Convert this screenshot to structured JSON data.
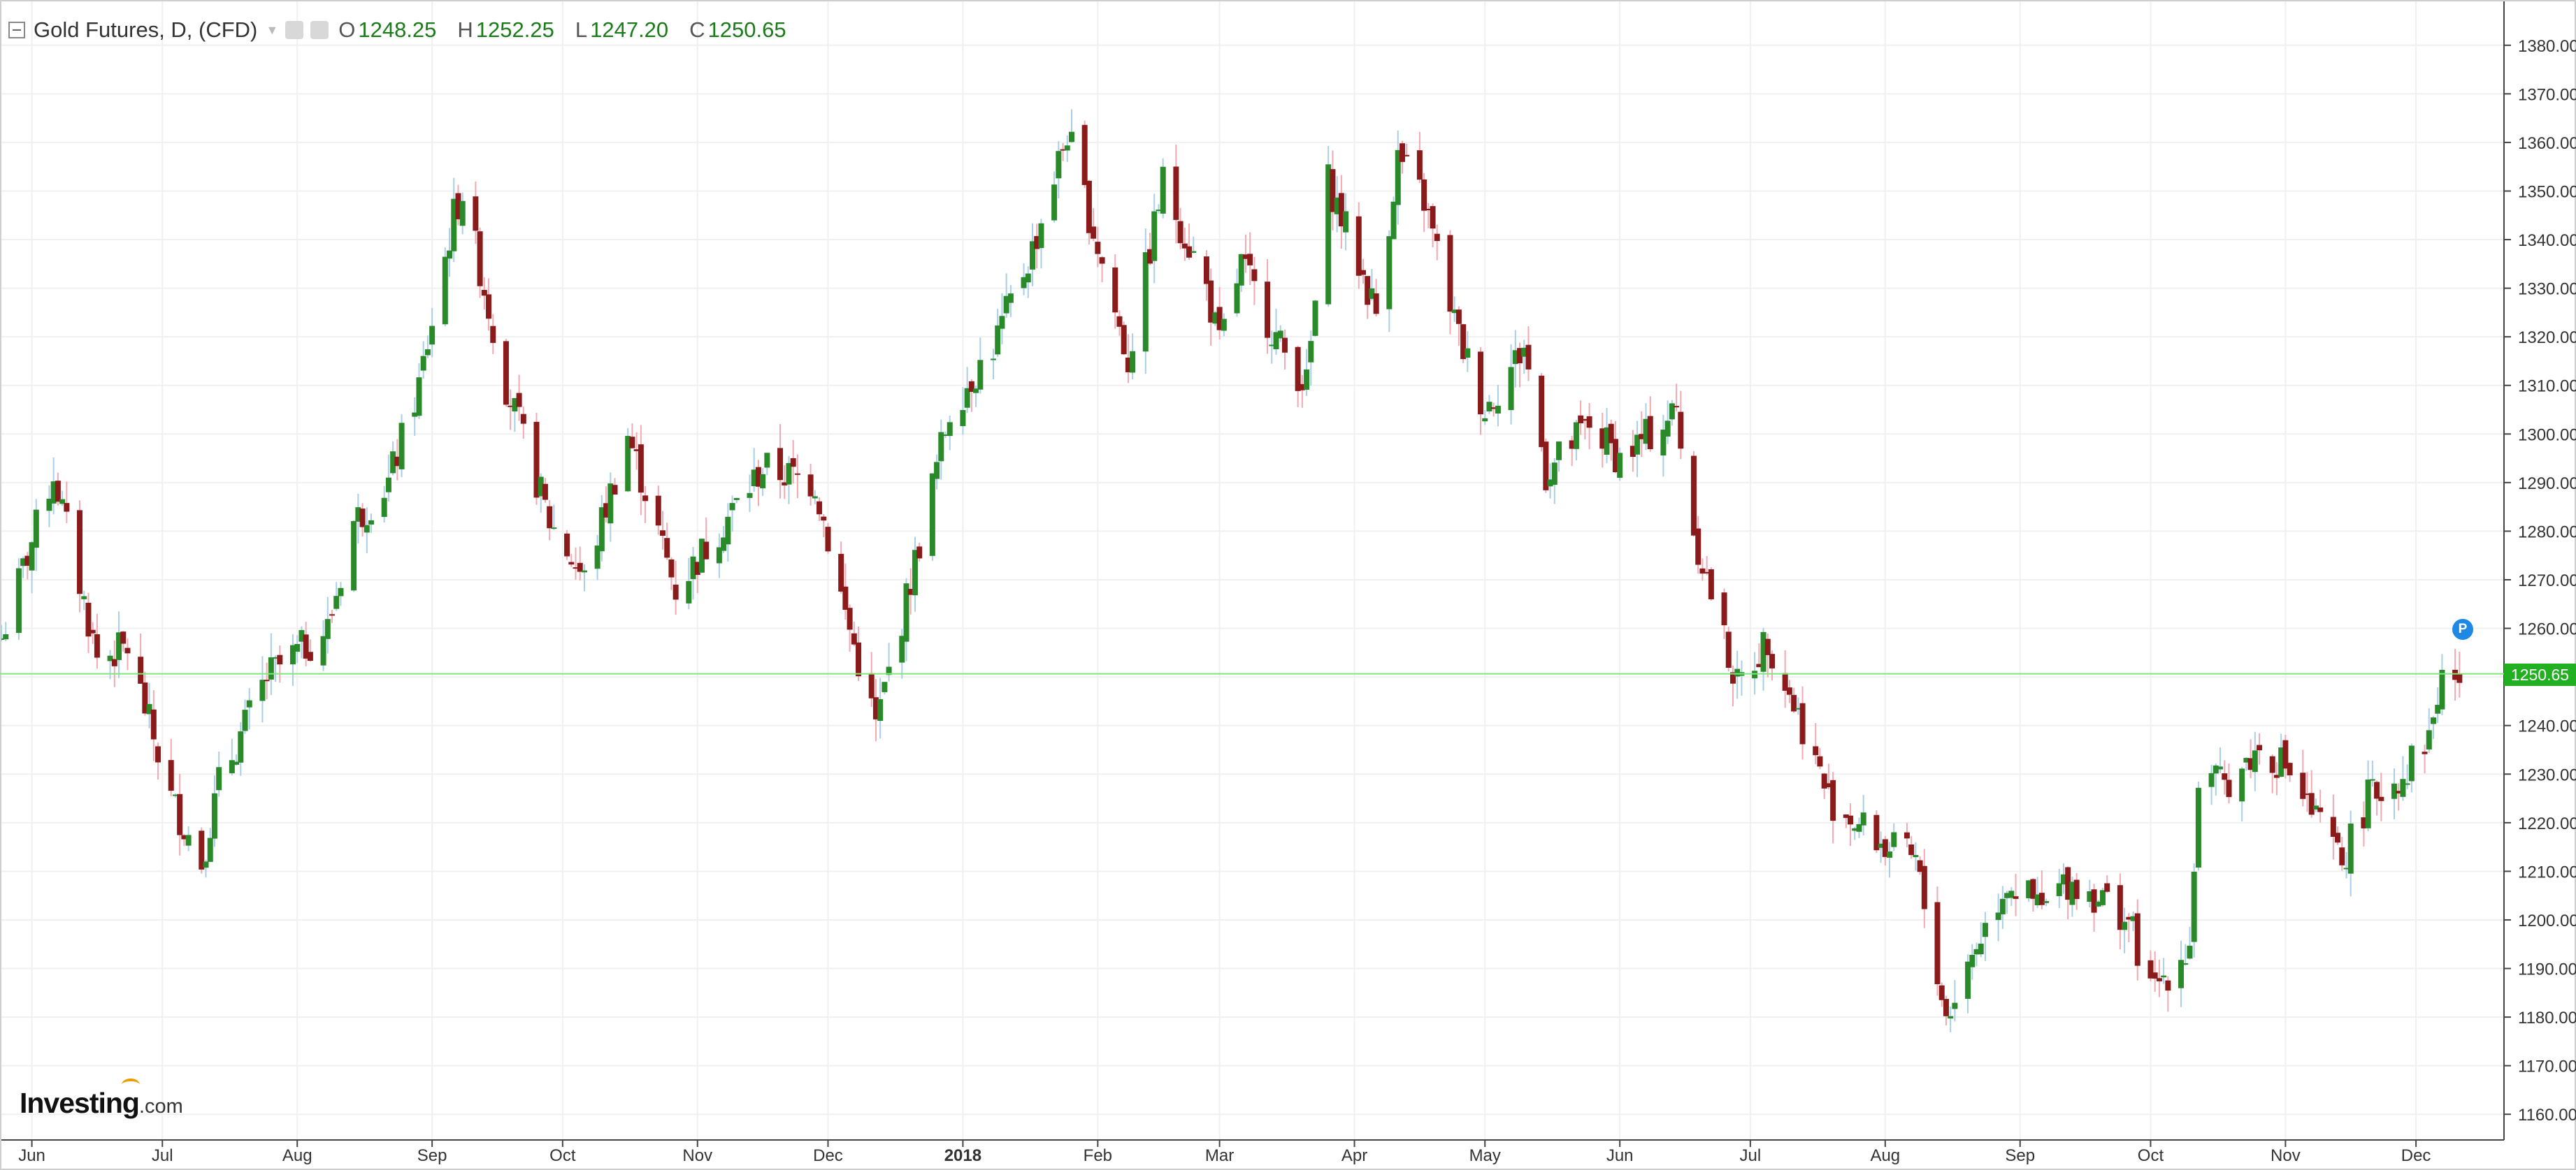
{
  "header": {
    "title": "Gold Futures, D, (CFD)",
    "ohlc": [
      {
        "label": "O",
        "value": "1248.25"
      },
      {
        "label": "H",
        "value": "1252.25"
      },
      {
        "label": "L",
        "value": "1247.20"
      },
      {
        "label": "C",
        "value": "1250.65"
      }
    ]
  },
  "logo": {
    "name": "Investing",
    "suffix": ".com"
  },
  "pin_label": "P",
  "last_price_label": "1250.65",
  "colors": {
    "up": "#2a8a2a",
    "down": "#8b1a1a",
    "up_wick": "#a8cfe8",
    "down_wick": "#f2a9b1",
    "last_line": "#7ee87e",
    "badge": "#22b022",
    "grid": "#f0f0f0"
  },
  "chart_data": {
    "type": "candlestick",
    "title": "Gold Futures, D, (CFD)",
    "ylim": [
      1155,
      1385
    ],
    "y_ticks": [
      "1160.00",
      "1170.00",
      "1180.00",
      "1190.00",
      "1200.00",
      "1210.00",
      "1220.00",
      "1230.00",
      "1240.00",
      "1250.00",
      "1260.00",
      "1270.00",
      "1280.00",
      "1290.00",
      "1300.00",
      "1310.00",
      "1320.00",
      "1330.00",
      "1340.00",
      "1350.00",
      "1360.00",
      "1370.00",
      "1380.00"
    ],
    "x_ticks": [
      {
        "label": "Jun",
        "x": "2017-06-01"
      },
      {
        "label": "Jul",
        "x": "2017-07-01"
      },
      {
        "label": "Aug",
        "x": "2017-08-01"
      },
      {
        "label": "Sep",
        "x": "2017-09-01"
      },
      {
        "label": "Oct",
        "x": "2017-10-01"
      },
      {
        "label": "Nov",
        "x": "2017-11-01"
      },
      {
        "label": "Dec",
        "x": "2017-12-01"
      },
      {
        "label": "2018",
        "x": "2018-01-01",
        "bold": true
      },
      {
        "label": "Feb",
        "x": "2018-02-01"
      },
      {
        "label": "Mar",
        "x": "2018-03-01"
      },
      {
        "label": "Apr",
        "x": "2018-04-01"
      },
      {
        "label": "May",
        "x": "2018-05-01"
      },
      {
        "label": "Jun",
        "x": "2018-06-01"
      },
      {
        "label": "Jul",
        "x": "2018-07-01"
      },
      {
        "label": "Aug",
        "x": "2018-08-01"
      },
      {
        "label": "Sep",
        "x": "2018-09-01"
      },
      {
        "label": "Oct",
        "x": "2018-10-01"
      },
      {
        "label": "Nov",
        "x": "2018-11-01"
      },
      {
        "label": "Dec",
        "x": "2018-12-01"
      }
    ],
    "last_price": 1250.65,
    "close_path": [
      {
        "x": "2017-05-25",
        "y": 1258
      },
      {
        "x": "2017-06-06",
        "y": 1292
      },
      {
        "x": "2017-06-16",
        "y": 1254
      },
      {
        "x": "2017-06-23",
        "y": 1256
      },
      {
        "x": "2017-07-03",
        "y": 1225
      },
      {
        "x": "2017-07-10",
        "y": 1212
      },
      {
        "x": "2017-07-14",
        "y": 1228
      },
      {
        "x": "2017-07-25",
        "y": 1250
      },
      {
        "x": "2017-08-08",
        "y": 1260
      },
      {
        "x": "2017-08-14",
        "y": 1282
      },
      {
        "x": "2017-08-22",
        "y": 1290
      },
      {
        "x": "2017-08-29",
        "y": 1310
      },
      {
        "x": "2017-09-06",
        "y": 1345
      },
      {
        "x": "2017-09-08",
        "y": 1350
      },
      {
        "x": "2017-09-18",
        "y": 1310
      },
      {
        "x": "2017-09-28",
        "y": 1282
      },
      {
        "x": "2017-10-06",
        "y": 1270
      },
      {
        "x": "2017-10-16",
        "y": 1300
      },
      {
        "x": "2017-10-27",
        "y": 1268
      },
      {
        "x": "2017-11-08",
        "y": 1283
      },
      {
        "x": "2017-11-16",
        "y": 1293
      },
      {
        "x": "2017-11-28",
        "y": 1290
      },
      {
        "x": "2017-12-05",
        "y": 1263
      },
      {
        "x": "2017-12-12",
        "y": 1240
      },
      {
        "x": "2017-12-18",
        "y": 1262
      },
      {
        "x": "2017-12-29",
        "y": 1305
      },
      {
        "x": "2018-01-08",
        "y": 1318
      },
      {
        "x": "2018-01-17",
        "y": 1338
      },
      {
        "x": "2018-01-25",
        "y": 1362
      },
      {
        "x": "2018-02-08",
        "y": 1315
      },
      {
        "x": "2018-02-16",
        "y": 1352
      },
      {
        "x": "2018-02-26",
        "y": 1330
      },
      {
        "x": "2018-03-01",
        "y": 1318
      },
      {
        "x": "2018-03-06",
        "y": 1335
      },
      {
        "x": "2018-03-15",
        "y": 1318
      },
      {
        "x": "2018-03-21",
        "y": 1310
      },
      {
        "x": "2018-03-26",
        "y": 1352
      },
      {
        "x": "2018-04-06",
        "y": 1325
      },
      {
        "x": "2018-04-11",
        "y": 1357
      },
      {
        "x": "2018-04-17",
        "y": 1348
      },
      {
        "x": "2018-04-25",
        "y": 1320
      },
      {
        "x": "2018-05-01",
        "y": 1305
      },
      {
        "x": "2018-05-10",
        "y": 1318
      },
      {
        "x": "2018-05-15",
        "y": 1292
      },
      {
        "x": "2018-05-25",
        "y": 1302
      },
      {
        "x": "2018-06-01",
        "y": 1295
      },
      {
        "x": "2018-06-08",
        "y": 1300
      },
      {
        "x": "2018-06-14",
        "y": 1305
      },
      {
        "x": "2018-06-18",
        "y": 1280
      },
      {
        "x": "2018-06-28",
        "y": 1248
      },
      {
        "x": "2018-07-05",
        "y": 1258
      },
      {
        "x": "2018-07-13",
        "y": 1240
      },
      {
        "x": "2018-07-19",
        "y": 1225
      },
      {
        "x": "2018-08-01",
        "y": 1215
      },
      {
        "x": "2018-08-08",
        "y": 1212
      },
      {
        "x": "2018-08-15",
        "y": 1180
      },
      {
        "x": "2018-08-22",
        "y": 1195
      },
      {
        "x": "2018-08-29",
        "y": 1208
      },
      {
        "x": "2018-09-06",
        "y": 1202
      },
      {
        "x": "2018-09-12",
        "y": 1208
      },
      {
        "x": "2018-09-19",
        "y": 1205
      },
      {
        "x": "2018-09-26",
        "y": 1200
      },
      {
        "x": "2018-10-01",
        "y": 1185
      },
      {
        "x": "2018-10-10",
        "y": 1195
      },
      {
        "x": "2018-10-12",
        "y": 1228
      },
      {
        "x": "2018-10-18",
        "y": 1228
      },
      {
        "x": "2018-10-26",
        "y": 1235
      },
      {
        "x": "2018-11-01",
        "y": 1232
      },
      {
        "x": "2018-11-07",
        "y": 1222
      },
      {
        "x": "2018-11-14",
        "y": 1212
      },
      {
        "x": "2018-11-20",
        "y": 1225
      },
      {
        "x": "2018-11-28",
        "y": 1230
      },
      {
        "x": "2018-12-04",
        "y": 1238
      },
      {
        "x": "2018-12-07",
        "y": 1250
      },
      {
        "x": "2018-12-10",
        "y": 1250
      }
    ]
  }
}
